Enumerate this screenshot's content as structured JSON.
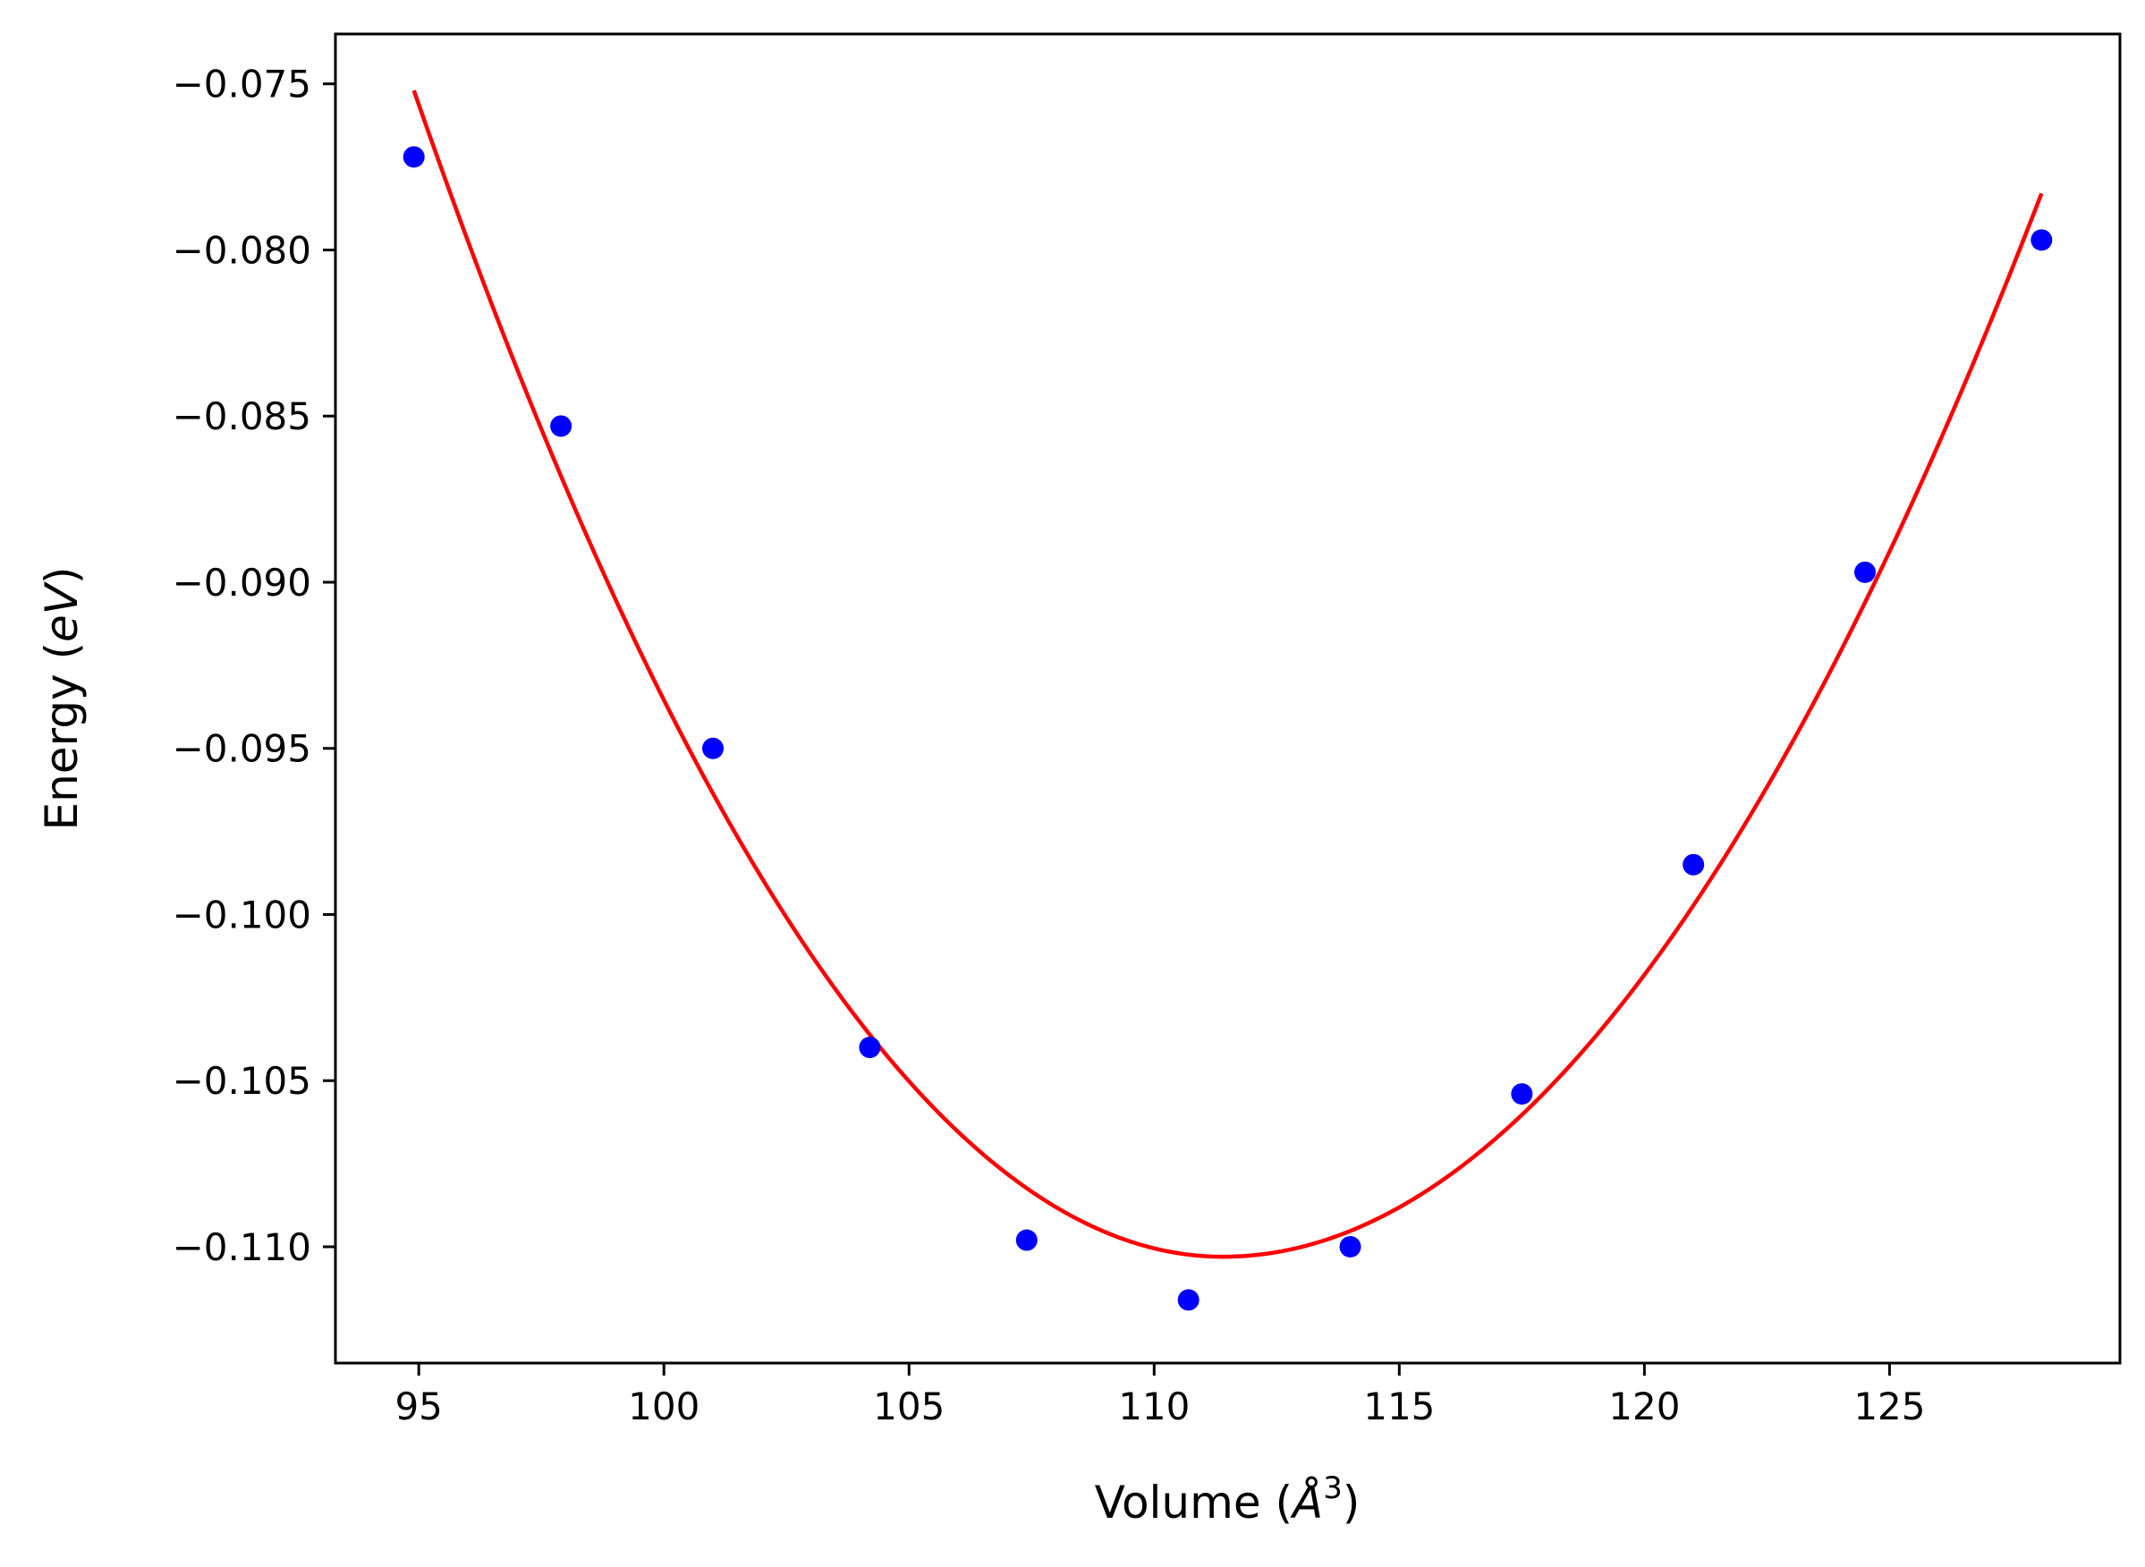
{
  "chart_data": {
    "type": "scatter",
    "title": "",
    "xlabel_main": "Volume (",
    "xlabel_unit": "Å",
    "xlabel_exp": "3",
    "xlabel_close": ")",
    "ylabel_main": "Energy (",
    "ylabel_unit": "eV",
    "ylabel_close": ")",
    "xlim": [
      93.3,
      129.7
    ],
    "ylim": [
      -0.1135,
      -0.0735
    ],
    "x_ticks": [
      95,
      100,
      105,
      110,
      115,
      120,
      125
    ],
    "x_tick_labels": [
      "95",
      "100",
      "105",
      "110",
      "115",
      "120",
      "125"
    ],
    "y_ticks": [
      -0.075,
      -0.08,
      -0.085,
      -0.09,
      -0.095,
      -0.1,
      -0.105,
      -0.11
    ],
    "y_tick_labels": [
      "−0.075",
      "−0.080",
      "−0.085",
      "−0.090",
      "−0.095",
      "−0.100",
      "−0.105",
      "−0.110"
    ],
    "grid": false,
    "series": [
      {
        "kind": "scatter",
        "color": "#0000ff",
        "x": [
          94.9,
          97.9,
          101.0,
          104.2,
          107.4,
          110.7,
          114.0,
          117.5,
          121.0,
          124.5,
          128.1
        ],
        "y": [
          -0.0772,
          -0.0853,
          -0.095,
          -0.104,
          -0.1098,
          -0.1116,
          -0.11,
          -0.1054,
          -0.0985,
          -0.0897,
          -0.0797
        ]
      },
      {
        "kind": "line",
        "color": "#ff0000",
        "fit_min": {
          "x": 111.4,
          "y": -0.1103
        },
        "x_range": [
          94.9,
          128.1
        ],
        "fit_points": [
          {
            "x": 94.9,
            "y": -0.0752
          },
          {
            "x": 128.1,
            "y": -0.0783
          }
        ]
      }
    ]
  }
}
